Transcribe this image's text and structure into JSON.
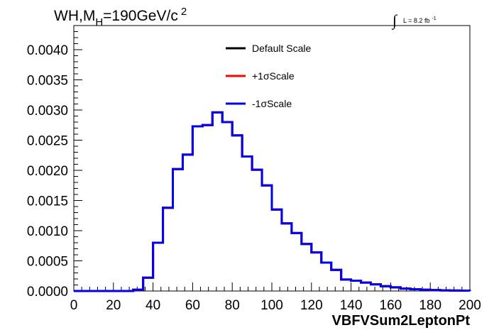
{
  "chart_data": {
    "type": "histogram",
    "title": {
      "main": "WH,M",
      "sub": "H",
      "rest": "=190GeV/c",
      "sup": "2"
    },
    "lumi": {
      "integral": "∫",
      "text": "L = 8.2 fb",
      "sup": "-1"
    },
    "xlabel": "VBFVSum2LeptonPt",
    "ylabel": "",
    "xlim": [
      0,
      200
    ],
    "ylim": [
      0,
      0.0044
    ],
    "x_ticks": [
      "0",
      "20",
      "40",
      "60",
      "80",
      "100",
      "120",
      "140",
      "160",
      "180",
      "200"
    ],
    "y_ticks": [
      "0.0000",
      "0.0005",
      "0.0010",
      "0.0015",
      "0.0020",
      "0.0025",
      "0.0030",
      "0.0035",
      "0.0040"
    ],
    "bin_width": 5,
    "bin_edges_start": 0,
    "legend_position": "top-center",
    "series": [
      {
        "name": "Default Scale",
        "color": "#000000",
        "values": [
          0,
          0,
          0,
          0,
          0,
          0,
          2e-05,
          0.00022,
          0.0008,
          0.00138,
          0.00202,
          0.00226,
          0.00273,
          0.00275,
          0.00296,
          0.0028,
          0.00258,
          0.00223,
          0.00201,
          0.00175,
          0.00135,
          0.00112,
          0.00096,
          0.00078,
          0.00064,
          0.00047,
          0.00035,
          0.00019,
          0.00017,
          0.00014,
          0.00011,
          8e-05,
          6e-05,
          4e-05,
          3e-05,
          2e-05,
          1.5e-05,
          1e-05,
          8e-06,
          6e-06
        ]
      },
      {
        "name": "+1σScale",
        "color": "#ff0000",
        "values": [
          0,
          0,
          0,
          0,
          0,
          0,
          2e-05,
          0.00022,
          0.0008,
          0.00138,
          0.00202,
          0.00226,
          0.00273,
          0.00275,
          0.00296,
          0.0028,
          0.00258,
          0.00223,
          0.00201,
          0.00175,
          0.00135,
          0.00112,
          0.00096,
          0.00078,
          0.00064,
          0.00047,
          0.00035,
          0.00019,
          0.00017,
          0.00014,
          0.00011,
          8e-05,
          6e-05,
          4e-05,
          3e-05,
          2e-05,
          1.5e-05,
          1e-05,
          8e-06,
          6e-06
        ]
      },
      {
        "name": "-1σScale",
        "color": "#0000ee",
        "values": [
          0,
          0,
          0,
          0,
          0,
          0,
          2e-05,
          0.00022,
          0.0008,
          0.00138,
          0.00202,
          0.00226,
          0.00273,
          0.00275,
          0.00296,
          0.0028,
          0.00258,
          0.00223,
          0.00201,
          0.00175,
          0.00135,
          0.00112,
          0.00096,
          0.00078,
          0.00064,
          0.00047,
          0.00035,
          0.00019,
          0.00017,
          0.00014,
          0.00011,
          8e-05,
          6e-05,
          4e-05,
          3e-05,
          2e-05,
          1.5e-05,
          1e-05,
          8e-06,
          6e-06
        ]
      }
    ]
  }
}
